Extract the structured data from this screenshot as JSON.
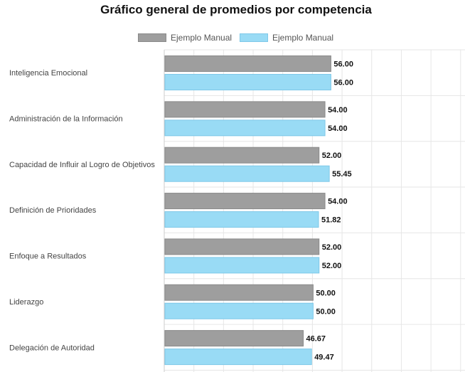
{
  "chart_data": {
    "type": "bar",
    "orientation": "horizontal",
    "title": "Gráfico general de promedios por competencia",
    "categories": [
      "Inteligencia Emocional",
      "Administración de la Información",
      "Capacidad de Influir al Logro de Objetivos",
      "Definición de Prioridades",
      "Enfoque a Resultados",
      "Liderazgo",
      "Delegación de Autoridad"
    ],
    "series": [
      {
        "name": "Ejemplo Manual",
        "color": "#9e9e9e",
        "border": "#8a8a8a",
        "values": [
          56.0,
          54.0,
          52.0,
          54.0,
          52.0,
          50.0,
          46.67
        ],
        "labels": [
          "56.00",
          "54.00",
          "52.00",
          "54.00",
          "52.00",
          "50.00",
          "46.67"
        ]
      },
      {
        "name": "Ejemplo Manual",
        "color": "#99dbf5",
        "border": "#7ec8e8",
        "values": [
          56.0,
          54.0,
          55.45,
          51.82,
          52.0,
          50.0,
          49.47
        ],
        "labels": [
          "56.00",
          "54.00",
          "55.45",
          "51.82",
          "52.00",
          "50.00",
          "49.47"
        ]
      }
    ],
    "xlim": [
      0,
      100
    ],
    "grid": true,
    "legend_position": "top",
    "tick_labels_visible": false
  }
}
